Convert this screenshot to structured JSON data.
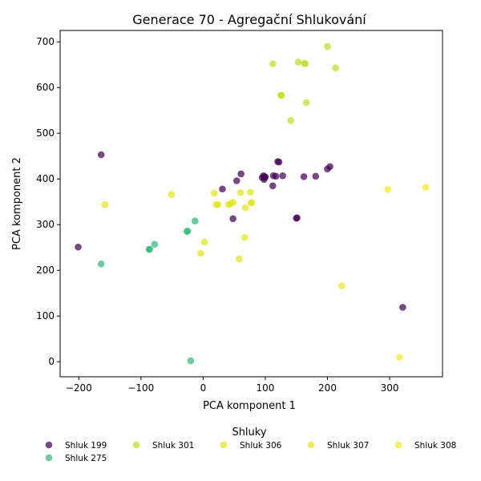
{
  "chart_data": {
    "type": "scatter",
    "title": "Generace 70 - Agregační Shlukování",
    "xlabel": "PCA komponent 1",
    "ylabel": "PCA komponent 2",
    "xlim": [
      -230,
      385
    ],
    "ylim": [
      -33,
      725
    ],
    "xticks": [
      -200,
      -100,
      0,
      100,
      200,
      300
    ],
    "yticks": [
      0,
      100,
      200,
      300,
      400,
      500,
      600,
      700
    ],
    "grid": false,
    "legend": {
      "title": "Shluky",
      "placement": "bottom-center"
    },
    "series": [
      {
        "name": "Shluk 199",
        "color": "#440154",
        "points": [
          [
            -201,
            251
          ],
          [
            -164,
            453
          ],
          [
            31,
            378
          ],
          [
            48,
            313
          ],
          [
            54,
            396
          ],
          [
            61,
            411
          ],
          [
            95,
            403
          ],
          [
            97,
            407
          ],
          [
            99,
            405
          ],
          [
            98,
            399
          ],
          [
            100,
            404
          ],
          [
            112,
            385
          ],
          [
            113,
            407
          ],
          [
            117,
            406
          ],
          [
            120,
            438
          ],
          [
            122,
            437
          ],
          [
            128,
            407
          ],
          [
            150,
            314
          ],
          [
            151,
            315
          ],
          [
            162,
            405
          ],
          [
            181,
            406
          ],
          [
            200,
            422
          ],
          [
            204,
            427
          ],
          [
            321,
            119
          ]
        ]
      },
      {
        "name": "Shluk 275",
        "color": "#35b779",
        "points": [
          [
            -164,
            214
          ],
          [
            -86,
            246
          ],
          [
            -87,
            246
          ],
          [
            -78,
            257
          ],
          [
            -26,
            285
          ],
          [
            -25,
            286
          ],
          [
            -13,
            308
          ],
          [
            -20,
            2
          ]
        ]
      },
      {
        "name": "Shluk 301",
        "color": "#bddf26",
        "points": [
          [
            112,
            652
          ],
          [
            125,
            583
          ],
          [
            126,
            583
          ],
          [
            141,
            528
          ],
          [
            153,
            656
          ],
          [
            163,
            653
          ],
          [
            164,
            652
          ],
          [
            166,
            567
          ],
          [
            200,
            690
          ],
          [
            213,
            643
          ]
        ]
      },
      {
        "name": "Shluk 306",
        "color": "#e2e418",
        "points": [
          [
            -158,
            344
          ],
          [
            -51,
            366
          ],
          [
            -4,
            237
          ],
          [
            2,
            262
          ],
          [
            18,
            369
          ],
          [
            21,
            344
          ],
          [
            24,
            344
          ],
          [
            41,
            344
          ],
          [
            44,
            346
          ],
          [
            48,
            349
          ],
          [
            58,
            225
          ],
          [
            60,
            370
          ],
          [
            67,
            272
          ],
          [
            68,
            337
          ],
          [
            76,
            371
          ],
          [
            77,
            348
          ],
          [
            78,
            348
          ]
        ]
      },
      {
        "name": "Shluk 307",
        "color": "#f0e51c",
        "points": [
          [
            223,
            166
          ]
        ]
      },
      {
        "name": "Shluk 308",
        "color": "#fde725",
        "points": [
          [
            297,
            377
          ],
          [
            316,
            10
          ],
          [
            358,
            382
          ]
        ]
      }
    ]
  }
}
